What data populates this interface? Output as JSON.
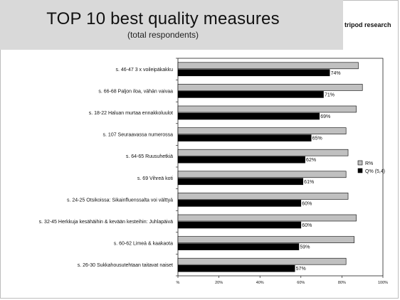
{
  "header": {
    "title": "TOP 10 best quality measures",
    "subtitle": "(total respondents)",
    "brand": "tripod research"
  },
  "colors": {
    "r_series": "#c0c0c0",
    "q_series": "#000000",
    "title_background": "#d9d9d9"
  },
  "chart_data": {
    "type": "bar",
    "orientation": "horizontal",
    "categories": [
      "s. 46-47 3 x voileipäkakku",
      "s. 66-68 Paljon iloa, vähän vaivaa",
      "s. 18-22 Haluan murtaa ennakkoluulot",
      "s. 107 Seuraavassa numerossa",
      "s. 64-65 Ruusuhetkiä",
      "s. 69 Vihreä koti",
      "s. 24-25 Otsikoissa: Sikainfluenssalta voi välttyä",
      "s. 32-45 Herkkuja kesähäihin & kevään kesteihin: Juhlapäivä",
      "s. 60-62 Limeä & kaakaota",
      "s. 26-30 Sukkahousutehtaan taitavat naiset"
    ],
    "series": [
      {
        "name": "R%",
        "values": [
          88,
          90,
          87,
          82,
          83,
          82,
          83,
          87,
          86,
          82
        ]
      },
      {
        "name": "Q% (5,4)",
        "values": [
          74,
          71,
          69,
          65,
          62,
          61,
          60,
          60,
          59,
          57
        ]
      }
    ],
    "data_labels": [
      "74%",
      "71%",
      "69%",
      "65%",
      "62%",
      "61%",
      "60%",
      "60%",
      "59%",
      "57%"
    ],
    "xlim": [
      0,
      100
    ],
    "x_ticks": [
      "%",
      "20%",
      "40%",
      "60%",
      "80%",
      "100%"
    ],
    "legend_position": "right",
    "grid": false
  }
}
